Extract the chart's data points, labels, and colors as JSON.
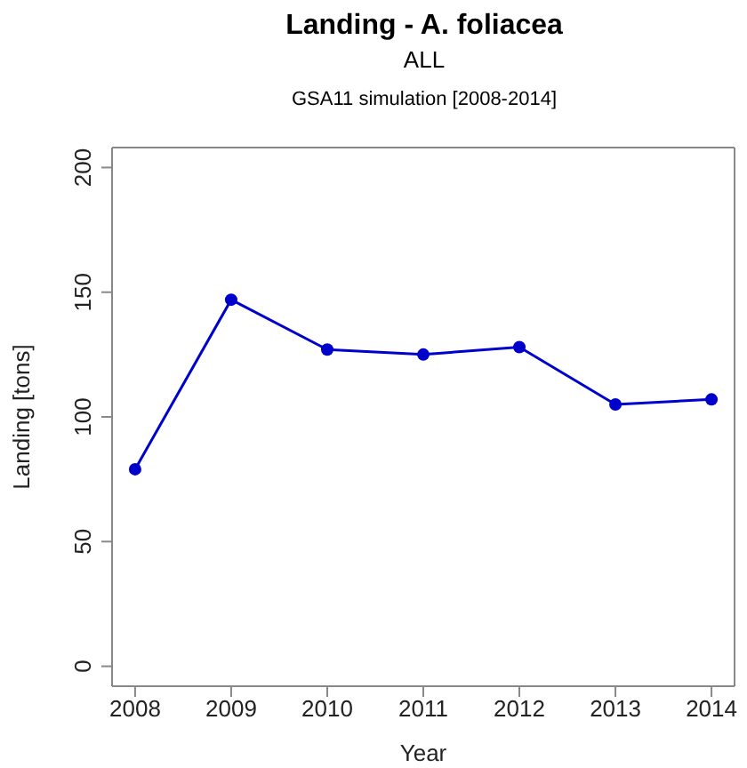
{
  "chart_data": {
    "type": "line",
    "title": "Landing - A. foliacea",
    "subtitle": "ALL",
    "annotations": [
      "GSA11 simulation [2008-2014]"
    ],
    "xlabel": "Year",
    "ylabel": "Landing [tons]",
    "x": [
      2008,
      2009,
      2010,
      2011,
      2012,
      2013,
      2014
    ],
    "series": [
      {
        "color": "#0000cc",
        "values": [
          79,
          147,
          127,
          125,
          128,
          105,
          107
        ]
      }
    ],
    "xlim": [
      2007.76,
      2014.24
    ],
    "xticks": [
      2008,
      2009,
      2010,
      2011,
      2012,
      2013,
      2014
    ],
    "ylim": [
      -8,
      208
    ],
    "yticks": [
      0,
      50,
      100,
      150,
      200
    ],
    "marker": "circle",
    "line_style": "solid",
    "grid": false
  }
}
